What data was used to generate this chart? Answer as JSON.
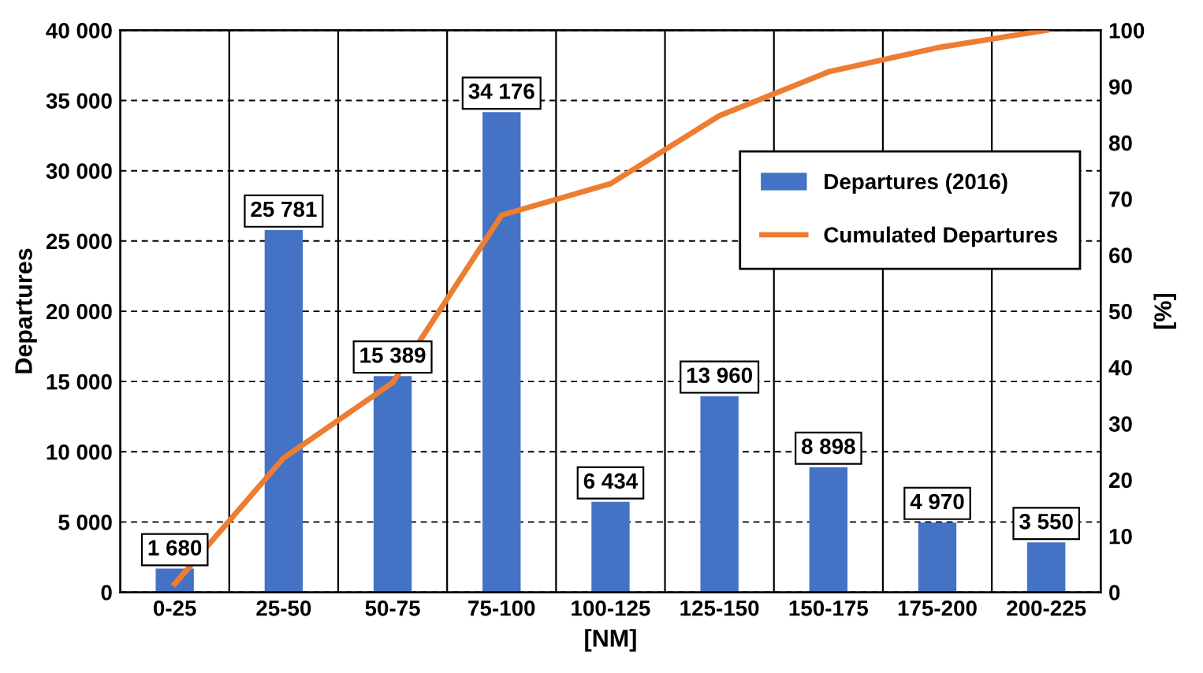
{
  "chart_data": {
    "type": "bar",
    "xlabel": "[NM]",
    "ylabel": "Departures",
    "y2label": "[%]",
    "categories": [
      "0-25",
      "25-50",
      "50-75",
      "75-100",
      "100-125",
      "125-150",
      "150-175",
      "175-200",
      "200-225"
    ],
    "series": [
      {
        "name": "Departures (2016)",
        "color": "#4472c4",
        "values": [
          1680,
          25781,
          15389,
          34176,
          6434,
          13960,
          8898,
          4970,
          3550
        ],
        "value_labels": [
          "1 680",
          "25 781",
          "15 389",
          "34 176",
          "6 434",
          "13 960",
          "8 898",
          "4 970",
          "3 550"
        ]
      },
      {
        "name": "Cumulated Departures",
        "type": "line",
        "axis": "y2",
        "color": "#ed7d31",
        "line_style": "solid",
        "marker": "none",
        "values": [
          1.5,
          23.9,
          37.3,
          67.1,
          72.7,
          84.8,
          92.6,
          96.9,
          100
        ]
      }
    ],
    "ylim": [
      0,
      40000
    ],
    "yticks": [
      0,
      {
        "value": 5000,
        "label": "5 000"
      },
      {
        "value": 10000,
        "label": "10 000"
      },
      {
        "value": 15000,
        "label": "15 000"
      },
      {
        "value": 20000,
        "label": "20 000"
      },
      {
        "value": 25000,
        "label": "25 000"
      },
      {
        "value": 30000,
        "label": "30 000"
      },
      {
        "value": 35000,
        "label": "35 000"
      },
      {
        "value": 40000,
        "label": "40 000"
      }
    ],
    "y2lim": [
      0,
      100
    ],
    "y2ticks": [
      0,
      10,
      20,
      30,
      40,
      50,
      60,
      70,
      80,
      90,
      100
    ],
    "grid": true,
    "legend": "right"
  }
}
